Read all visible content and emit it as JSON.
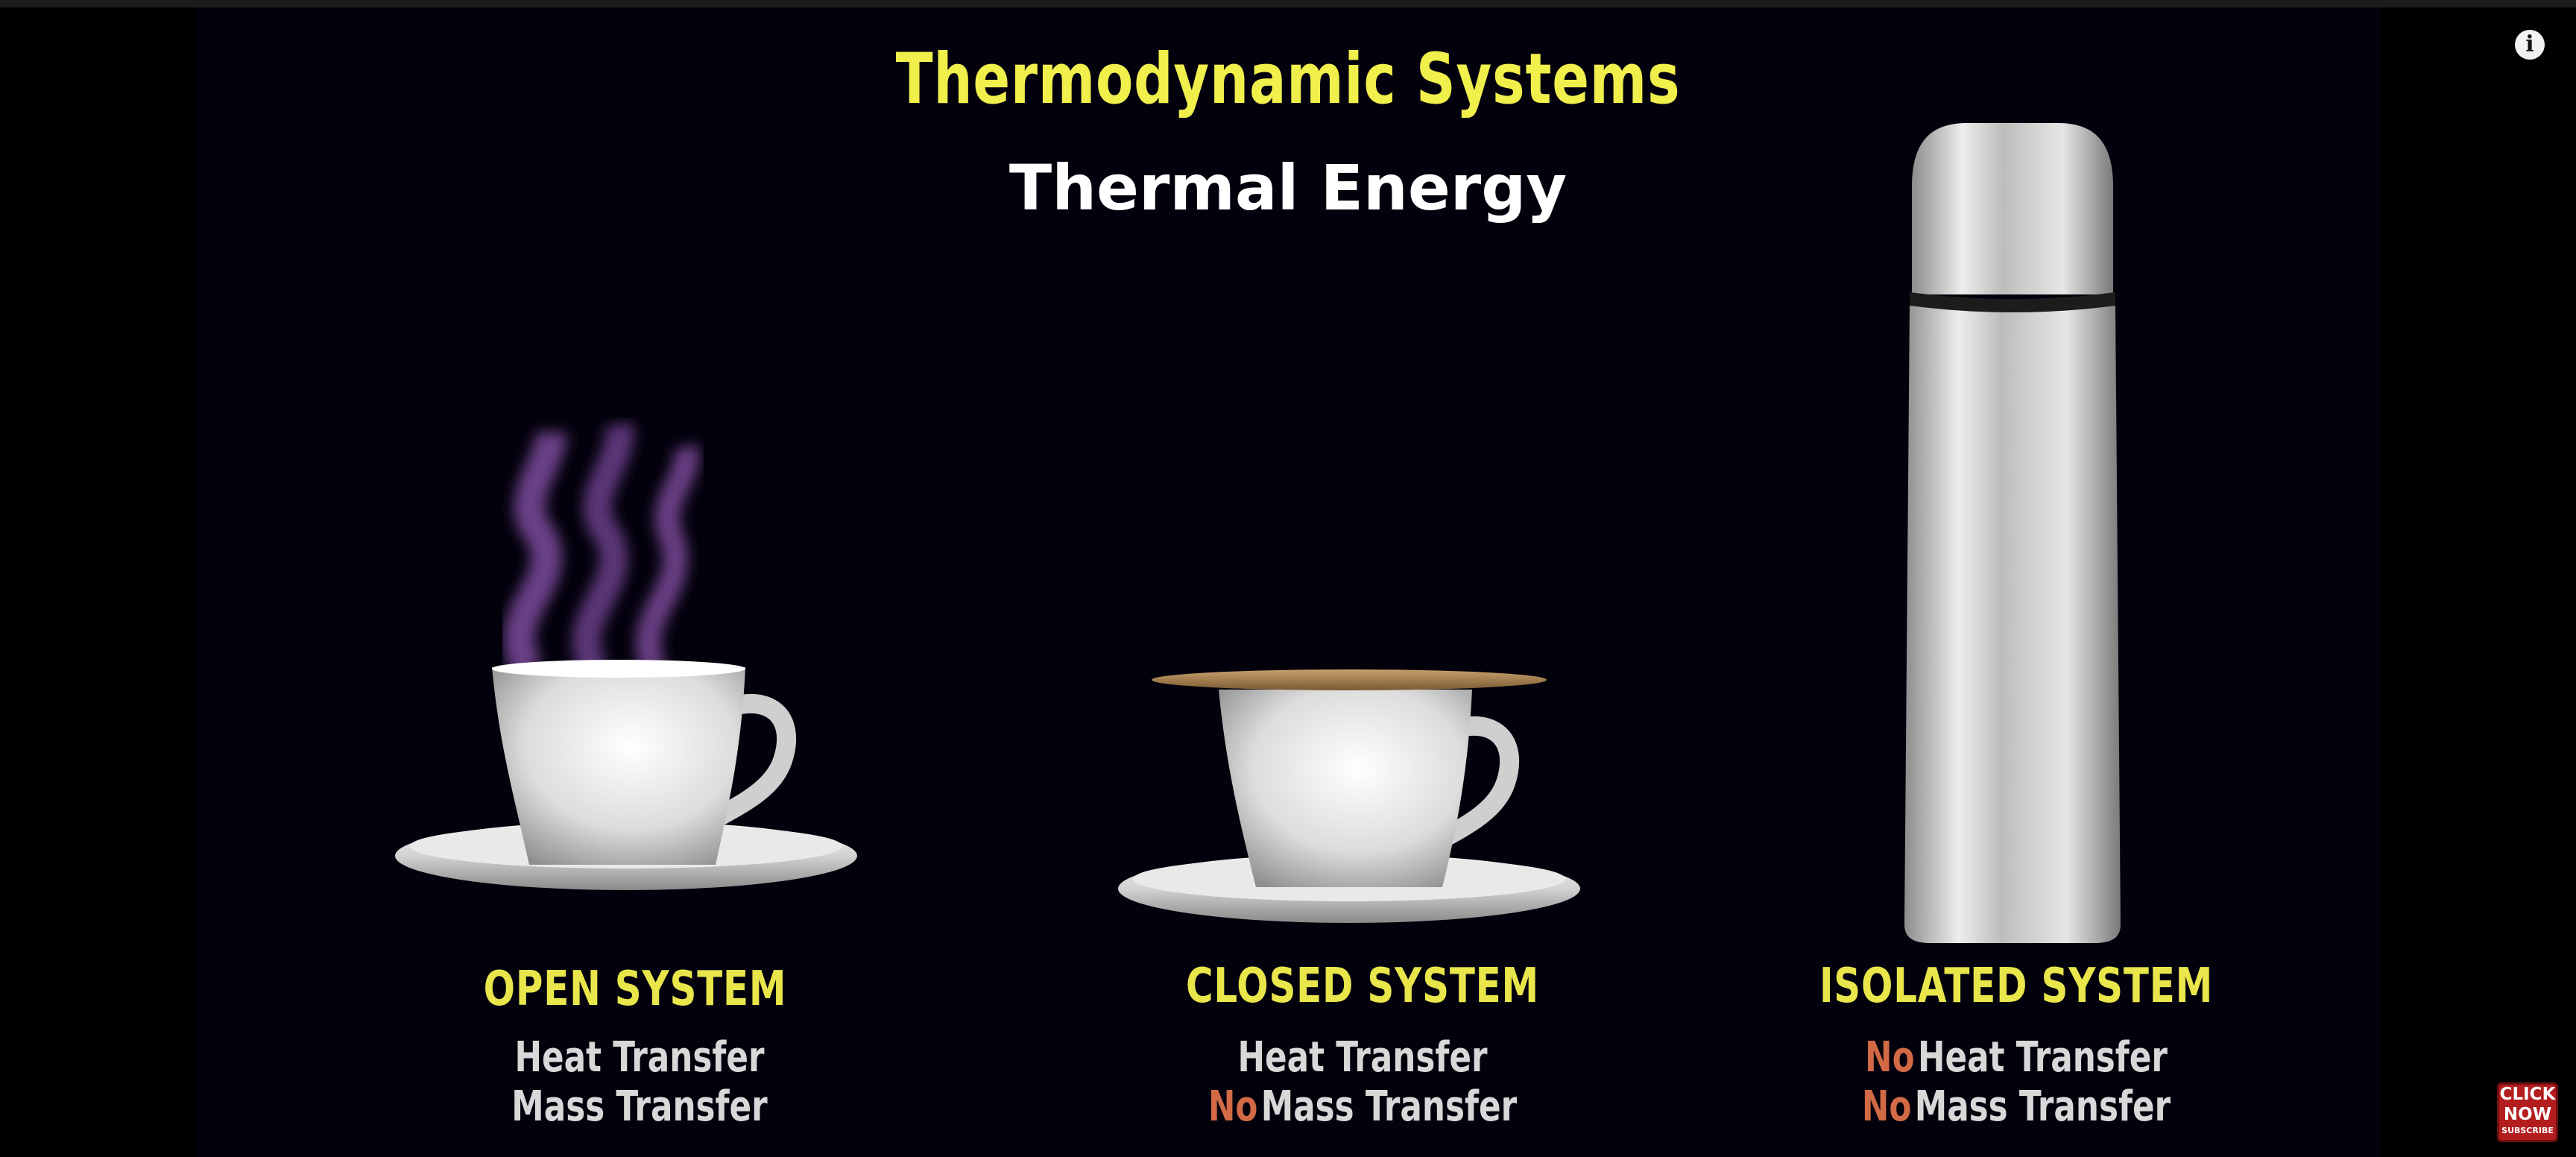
{
  "slide": {
    "title": "Thermodynamic Systems",
    "subtitle": "Thermal Energy"
  },
  "systems": [
    {
      "name": "OPEN SYSTEM",
      "line1_no": "",
      "line1": "Heat Transfer",
      "line2_no": "",
      "line2": "Mass Transfer"
    },
    {
      "name": "CLOSED SYSTEM",
      "line1_no": "",
      "line1": "Heat Transfer",
      "line2_no": "No",
      "line2": "Mass Transfer"
    },
    {
      "name": "ISOLATED SYSTEM",
      "line1_no": "No",
      "line1": "Heat Transfer",
      "line2_no": "No",
      "line2": "Mass Transfer"
    }
  ],
  "controls": {
    "info_icon": "info-icon",
    "subscribe_line1": "CLICK",
    "subscribe_line2": "NOW",
    "subscribe_line3": "SUBSCRIBE"
  },
  "colors": {
    "title": "#f0ef4c",
    "system_name": "#e8e64a",
    "negation": "#d26a46",
    "body_text": "#d8d8d8",
    "background": "#03010c"
  }
}
